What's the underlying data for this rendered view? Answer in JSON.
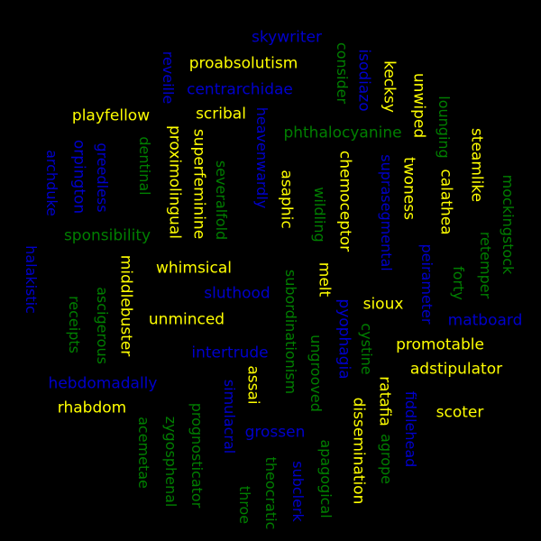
{
  "colors": {
    "background": "#000000",
    "yellow": "#ffff00",
    "blue": "#0000cc",
    "green": "#007f00"
  },
  "words": [
    {
      "text": "skywriter",
      "color": "blue"
    },
    {
      "text": "proabsolutism",
      "color": "yellow"
    },
    {
      "text": "reveille",
      "color": "blue"
    },
    {
      "text": "centrarchidae",
      "color": "blue"
    },
    {
      "text": "consider",
      "color": "green"
    },
    {
      "text": "isodiazo",
      "color": "blue"
    },
    {
      "text": "kecksy",
      "color": "yellow"
    },
    {
      "text": "unwiped",
      "color": "yellow"
    },
    {
      "text": "lounging",
      "color": "green"
    },
    {
      "text": "playfellow",
      "color": "yellow"
    },
    {
      "text": "scribal",
      "color": "yellow"
    },
    {
      "text": "heavenwardly",
      "color": "blue"
    },
    {
      "text": "phthalocyanine",
      "color": "green"
    },
    {
      "text": "steamlike",
      "color": "yellow"
    },
    {
      "text": "archduke",
      "color": "blue"
    },
    {
      "text": "orpington",
      "color": "blue"
    },
    {
      "text": "greedless",
      "color": "blue"
    },
    {
      "text": "dentinal",
      "color": "green"
    },
    {
      "text": "proximolingual",
      "color": "yellow"
    },
    {
      "text": "superfeminine",
      "color": "yellow"
    },
    {
      "text": "severalfold",
      "color": "green"
    },
    {
      "text": "asaphic",
      "color": "yellow"
    },
    {
      "text": "chemoceptor",
      "color": "yellow"
    },
    {
      "text": "suprasegmental",
      "color": "blue"
    },
    {
      "text": "twoness",
      "color": "yellow"
    },
    {
      "text": "calathea",
      "color": "yellow"
    },
    {
      "text": "mockingstock",
      "color": "green"
    },
    {
      "text": "wildling",
      "color": "green"
    },
    {
      "text": "sponsibility",
      "color": "green"
    },
    {
      "text": "retemper",
      "color": "green"
    },
    {
      "text": "halakistic",
      "color": "blue"
    },
    {
      "text": "middlebuster",
      "color": "yellow"
    },
    {
      "text": "whimsical",
      "color": "yellow"
    },
    {
      "text": "peirameter",
      "color": "blue"
    },
    {
      "text": "forty",
      "color": "green"
    },
    {
      "text": "receipts",
      "color": "green"
    },
    {
      "text": "ascigerous",
      "color": "green"
    },
    {
      "text": "sluthood",
      "color": "blue"
    },
    {
      "text": "subordinationism",
      "color": "green"
    },
    {
      "text": "melt",
      "color": "yellow"
    },
    {
      "text": "sioux",
      "color": "yellow"
    },
    {
      "text": "matboard",
      "color": "blue"
    },
    {
      "text": "unminced",
      "color": "yellow"
    },
    {
      "text": "pyophagia",
      "color": "blue"
    },
    {
      "text": "ungrooved",
      "color": "green"
    },
    {
      "text": "cystine",
      "color": "green"
    },
    {
      "text": "promotable",
      "color": "yellow"
    },
    {
      "text": "intertrude",
      "color": "blue"
    },
    {
      "text": "adstipulator",
      "color": "yellow"
    },
    {
      "text": "hebdomadally",
      "color": "blue"
    },
    {
      "text": "simulacral",
      "color": "blue"
    },
    {
      "text": "assai",
      "color": "yellow"
    },
    {
      "text": "dissemination",
      "color": "yellow"
    },
    {
      "text": "ratafia",
      "color": "yellow"
    },
    {
      "text": "fiddlehead",
      "color": "blue"
    },
    {
      "text": "rhabdom",
      "color": "yellow"
    },
    {
      "text": "scoter",
      "color": "yellow"
    },
    {
      "text": "acemetae",
      "color": "green"
    },
    {
      "text": "zygosphenal",
      "color": "green"
    },
    {
      "text": "prognosticator",
      "color": "green"
    },
    {
      "text": "grossen",
      "color": "blue"
    },
    {
      "text": "apagogical",
      "color": "green"
    },
    {
      "text": "agrope",
      "color": "green"
    },
    {
      "text": "throe",
      "color": "green"
    },
    {
      "text": "theocratic",
      "color": "green"
    },
    {
      "text": "subclerk",
      "color": "blue"
    }
  ]
}
